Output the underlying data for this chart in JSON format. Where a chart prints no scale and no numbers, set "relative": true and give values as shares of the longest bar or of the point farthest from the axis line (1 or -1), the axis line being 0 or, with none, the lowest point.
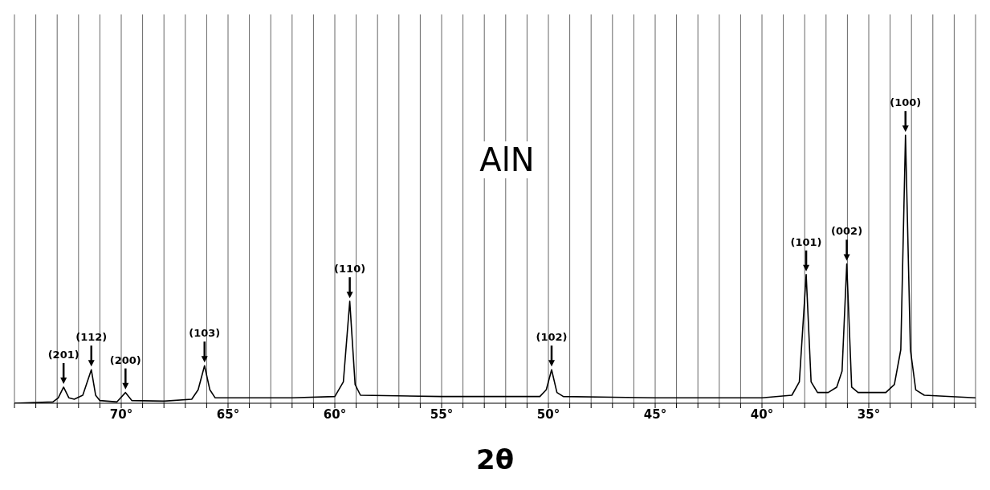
{
  "chart_data": {
    "type": "line",
    "title": "AlN",
    "xlabel": "2θ",
    "relative": true,
    "color": "#000000",
    "grid": "x",
    "marker": "none",
    "line_style": "solid",
    "xlim": [
      75,
      30
    ],
    "xticks": [
      {
        "value": 75,
        "label": null
      },
      {
        "value": 74,
        "label": null
      },
      {
        "value": 73,
        "label": null
      },
      {
        "value": 72,
        "label": null
      },
      {
        "value": 71,
        "label": null
      },
      {
        "value": 70,
        "label": "70°"
      },
      {
        "value": 69,
        "label": null
      },
      {
        "value": 68,
        "label": null
      },
      {
        "value": 67,
        "label": null
      },
      {
        "value": 66,
        "label": null
      },
      {
        "value": 65,
        "label": "65°"
      },
      {
        "value": 64,
        "label": null
      },
      {
        "value": 63,
        "label": null
      },
      {
        "value": 62,
        "label": null
      },
      {
        "value": 61,
        "label": null
      },
      {
        "value": 60,
        "label": "60°"
      },
      {
        "value": 59,
        "label": null
      },
      {
        "value": 58,
        "label": null
      },
      {
        "value": 57,
        "label": null
      },
      {
        "value": 56,
        "label": null
      },
      {
        "value": 55,
        "label": "55°"
      },
      {
        "value": 54,
        "label": null
      },
      {
        "value": 53,
        "label": null
      },
      {
        "value": 52,
        "label": null
      },
      {
        "value": 51,
        "label": null
      },
      {
        "value": 50,
        "label": "50°"
      },
      {
        "value": 49,
        "label": null
      },
      {
        "value": 48,
        "label": null
      },
      {
        "value": 47,
        "label": null
      },
      {
        "value": 46,
        "label": null
      },
      {
        "value": 45,
        "label": "45°"
      },
      {
        "value": 44,
        "label": null
      },
      {
        "value": 43,
        "label": null
      },
      {
        "value": 42,
        "label": null
      },
      {
        "value": 41,
        "label": null
      },
      {
        "value": 40,
        "label": "40°"
      },
      {
        "value": 39,
        "label": null
      },
      {
        "value": 38,
        "label": null
      },
      {
        "value": 37,
        "label": null
      },
      {
        "value": 36,
        "label": null
      },
      {
        "value": 35,
        "label": "35°"
      },
      {
        "value": 34,
        "label": null
      },
      {
        "value": 33,
        "label": null
      },
      {
        "value": 32,
        "label": null
      },
      {
        "value": 31,
        "label": null
      },
      {
        "value": 30,
        "label": null
      }
    ],
    "x": [
      75,
      73.2,
      72.95,
      72.7,
      72.45,
      72.2,
      71.8,
      71.4,
      71.2,
      71.0,
      70.2,
      69.8,
      69.5,
      68,
      66.7,
      66.4,
      66.1,
      65.85,
      65.6,
      62,
      60,
      59.6,
      59.3,
      59.05,
      58.8,
      55,
      50.4,
      50.1,
      49.85,
      49.6,
      49.3,
      45,
      40,
      38.6,
      38.25,
      37.93,
      37.7,
      37.4,
      36.9,
      36.5,
      36.25,
      36.03,
      35.8,
      35.5,
      34.2,
      33.8,
      33.5,
      33.28,
      33.05,
      32.8,
      32.4,
      30
    ],
    "values": [
      0,
      0.005,
      0.02,
      0.06,
      0.02,
      0.015,
      0.03,
      0.125,
      0.03,
      0.01,
      0.005,
      0.04,
      0.01,
      0.008,
      0.015,
      0.05,
      0.14,
      0.05,
      0.02,
      0.02,
      0.025,
      0.08,
      0.38,
      0.07,
      0.03,
      0.025,
      0.025,
      0.05,
      0.125,
      0.04,
      0.025,
      0.02,
      0.02,
      0.03,
      0.08,
      0.48,
      0.08,
      0.04,
      0.04,
      0.06,
      0.12,
      0.52,
      0.06,
      0.04,
      0.04,
      0.07,
      0.2,
      1,
      0.2,
      0.05,
      0.03,
      0.02
    ],
    "annotations": [
      {
        "text": "(201)",
        "x": 72.7,
        "y": 0.06
      },
      {
        "text": "(112)",
        "x": 71.4,
        "y": 0.125
      },
      {
        "text": "(200)",
        "x": 69.8,
        "y": 0.04
      },
      {
        "text": "(103)",
        "x": 66.1,
        "y": 0.14
      },
      {
        "text": "(110)",
        "x": 59.3,
        "y": 0.38
      },
      {
        "text": "(102)",
        "x": 49.85,
        "y": 0.125
      },
      {
        "text": "(101)",
        "x": 37.93,
        "y": 0.48
      },
      {
        "text": "(002)",
        "x": 36.03,
        "y": 0.52
      },
      {
        "text": "(100)",
        "x": 33.28,
        "y": 1
      }
    ]
  }
}
